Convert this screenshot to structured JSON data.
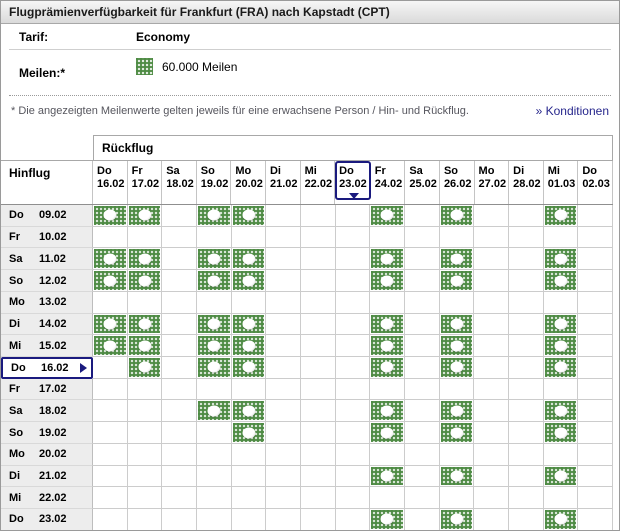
{
  "header": {
    "title": "Flugprämienverfügbarkeit für Frankfurt (FRA) nach Kapstadt (CPT)"
  },
  "info": {
    "tarif_label": "Tarif:",
    "tarif_value": "Economy",
    "meilen_label": "Meilen:*",
    "meilen_value": "60.000 Meilen",
    "meilen_icon": "award-availability-icon",
    "note": "* Die angezeigten Meilenwerte gelten jeweils für eine erwachsene Person / Hin- und Rückflug.",
    "konditionen_link": "» Konditionen"
  },
  "colors": {
    "available_green": "#4e8b44",
    "selection_navy": "#1a1a7e",
    "link_blue": "#26268c",
    "label_gray_bg": "#ededed"
  },
  "calendar": {
    "return_label": "Rückflug",
    "outbound_label": "Hinflug",
    "columns": [
      {
        "day": "Do",
        "date": "16.02",
        "selected": false
      },
      {
        "day": "Fr",
        "date": "17.02",
        "selected": false
      },
      {
        "day": "Sa",
        "date": "18.02",
        "selected": false
      },
      {
        "day": "So",
        "date": "19.02",
        "selected": false
      },
      {
        "day": "Mo",
        "date": "20.02",
        "selected": false
      },
      {
        "day": "Di",
        "date": "21.02",
        "selected": false
      },
      {
        "day": "Mi",
        "date": "22.02",
        "selected": false
      },
      {
        "day": "Do",
        "date": "23.02",
        "selected": true
      },
      {
        "day": "Fr",
        "date": "24.02",
        "selected": false
      },
      {
        "day": "Sa",
        "date": "25.02",
        "selected": false
      },
      {
        "day": "So",
        "date": "26.02",
        "selected": false
      },
      {
        "day": "Mo",
        "date": "27.02",
        "selected": false
      },
      {
        "day": "Di",
        "date": "28.02",
        "selected": false
      },
      {
        "day": "Mi",
        "date": "01.03",
        "selected": false
      },
      {
        "day": "Do",
        "date": "02.03",
        "selected": false
      }
    ],
    "rows": [
      {
        "day": "Do",
        "date": "09.02",
        "selected": false,
        "availability": [
          1,
          1,
          0,
          1,
          1,
          0,
          0,
          0,
          1,
          0,
          1,
          0,
          0,
          1,
          0
        ]
      },
      {
        "day": "Fr",
        "date": "10.02",
        "selected": false,
        "availability": [
          0,
          0,
          0,
          0,
          0,
          0,
          0,
          0,
          0,
          0,
          0,
          0,
          0,
          0,
          0
        ]
      },
      {
        "day": "Sa",
        "date": "11.02",
        "selected": false,
        "availability": [
          1,
          1,
          0,
          1,
          1,
          0,
          0,
          0,
          1,
          0,
          1,
          0,
          0,
          1,
          0
        ]
      },
      {
        "day": "So",
        "date": "12.02",
        "selected": false,
        "availability": [
          1,
          1,
          0,
          1,
          1,
          0,
          0,
          0,
          1,
          0,
          1,
          0,
          0,
          1,
          0
        ]
      },
      {
        "day": "Mo",
        "date": "13.02",
        "selected": false,
        "availability": [
          0,
          0,
          0,
          0,
          0,
          0,
          0,
          0,
          0,
          0,
          0,
          0,
          0,
          0,
          0
        ]
      },
      {
        "day": "Di",
        "date": "14.02",
        "selected": false,
        "availability": [
          1,
          1,
          0,
          1,
          1,
          0,
          0,
          0,
          1,
          0,
          1,
          0,
          0,
          1,
          0
        ]
      },
      {
        "day": "Mi",
        "date": "15.02",
        "selected": false,
        "availability": [
          1,
          1,
          0,
          1,
          1,
          0,
          0,
          0,
          1,
          0,
          1,
          0,
          0,
          1,
          0
        ]
      },
      {
        "day": "Do",
        "date": "16.02",
        "selected": true,
        "availability": [
          0,
          1,
          0,
          1,
          1,
          0,
          0,
          0,
          1,
          0,
          1,
          0,
          0,
          1,
          0
        ]
      },
      {
        "day": "Fr",
        "date": "17.02",
        "selected": false,
        "availability": [
          0,
          0,
          0,
          0,
          0,
          0,
          0,
          0,
          0,
          0,
          0,
          0,
          0,
          0,
          0
        ]
      },
      {
        "day": "Sa",
        "date": "18.02",
        "selected": false,
        "availability": [
          0,
          0,
          0,
          1,
          1,
          0,
          0,
          0,
          1,
          0,
          1,
          0,
          0,
          1,
          0
        ]
      },
      {
        "day": "So",
        "date": "19.02",
        "selected": false,
        "availability": [
          0,
          0,
          0,
          0,
          1,
          0,
          0,
          0,
          1,
          0,
          1,
          0,
          0,
          1,
          0
        ]
      },
      {
        "day": "Mo",
        "date": "20.02",
        "selected": false,
        "availability": [
          0,
          0,
          0,
          0,
          0,
          0,
          0,
          0,
          0,
          0,
          0,
          0,
          0,
          0,
          0
        ]
      },
      {
        "day": "Di",
        "date": "21.02",
        "selected": false,
        "availability": [
          0,
          0,
          0,
          0,
          0,
          0,
          0,
          0,
          1,
          0,
          1,
          0,
          0,
          1,
          0
        ]
      },
      {
        "day": "Mi",
        "date": "22.02",
        "selected": false,
        "availability": [
          0,
          0,
          0,
          0,
          0,
          0,
          0,
          0,
          0,
          0,
          0,
          0,
          0,
          0,
          0
        ]
      },
      {
        "day": "Do",
        "date": "23.02",
        "selected": false,
        "availability": [
          0,
          0,
          0,
          0,
          0,
          0,
          0,
          0,
          1,
          0,
          1,
          0,
          0,
          1,
          0
        ]
      }
    ]
  }
}
